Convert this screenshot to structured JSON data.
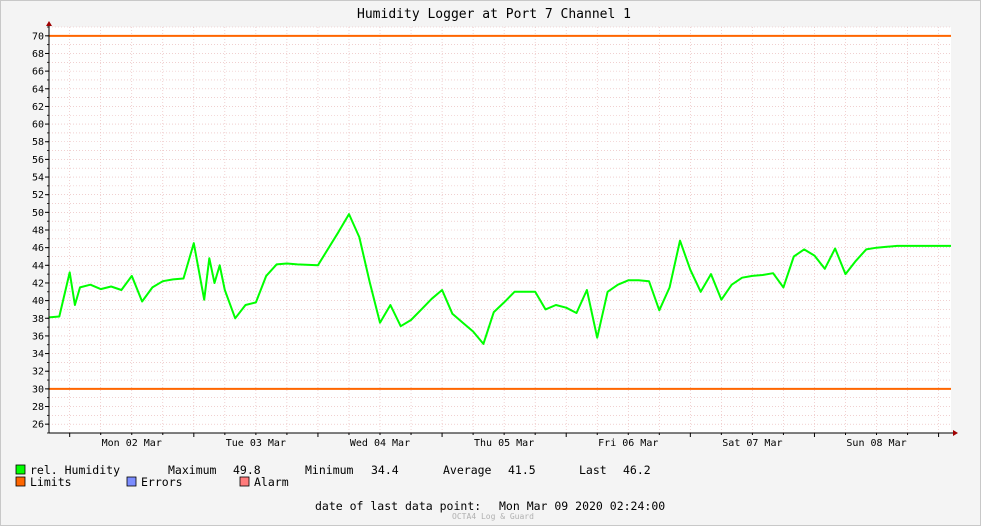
{
  "chart_data": {
    "type": "line",
    "title": "Humidity Logger at Port 7 Channel 1",
    "x_ticks": [
      "Mon 02 Mar",
      "Tue 03 Mar",
      "Wed 04 Mar",
      "Thu 05 Mar",
      "Fri 06 Mar",
      "Sat 07 Mar",
      "Sun 08 Mar"
    ],
    "x_range": [
      "Sun 01 Mar 2020 20:00",
      "Mon 09 Mar 2020 02:24"
    ],
    "ylim": [
      25,
      71
    ],
    "y_ticks": [
      26,
      28,
      30,
      32,
      34,
      36,
      38,
      40,
      42,
      44,
      46,
      48,
      50,
      52,
      54,
      56,
      58,
      60,
      62,
      64,
      66,
      68,
      70
    ],
    "grid": true,
    "limits": {
      "upper": 70,
      "lower": 30,
      "color": "#ff6600"
    },
    "series": [
      {
        "name": "rel. Humidity",
        "color": "#00ff00",
        "x": [
          "Sun 01 Mar 2020 20:00",
          "Sun 01 Mar 2020 22:00",
          "Mon 02 Mar 2020 00:00",
          "Mon 02 Mar 2020 01:00",
          "Mon 02 Mar 2020 02:00",
          "Mon 02 Mar 2020 04:00",
          "Mon 02 Mar 2020 06:00",
          "Mon 02 Mar 2020 08:00",
          "Mon 02 Mar 2020 10:00",
          "Mon 02 Mar 2020 12:00",
          "Mon 02 Mar 2020 14:00",
          "Mon 02 Mar 2020 16:00",
          "Mon 02 Mar 2020 18:00",
          "Mon 02 Mar 2020 20:00",
          "Mon 02 Mar 2020 22:00",
          "Tue 03 Mar 2020 00:00",
          "Tue 03 Mar 2020 02:00",
          "Tue 03 Mar 2020 03:00",
          "Tue 03 Mar 2020 04:00",
          "Tue 03 Mar 2020 05:00",
          "Tue 03 Mar 2020 06:00",
          "Tue 03 Mar 2020 08:00",
          "Tue 03 Mar 2020 10:00",
          "Tue 03 Mar 2020 12:00",
          "Tue 03 Mar 2020 14:00",
          "Tue 03 Mar 2020 16:00",
          "Tue 03 Mar 2020 18:00",
          "Tue 03 Mar 2020 20:00",
          "Wed 04 Mar 2020 00:00",
          "Wed 04 Mar 2020 04:00",
          "Wed 04 Mar 2020 06:00",
          "Wed 04 Mar 2020 08:00",
          "Wed 04 Mar 2020 10:00",
          "Wed 04 Mar 2020 12:00",
          "Wed 04 Mar 2020 14:00",
          "Wed 04 Mar 2020 16:00",
          "Wed 04 Mar 2020 18:00",
          "Wed 04 Mar 2020 20:00",
          "Wed 04 Mar 2020 22:00",
          "Thu 05 Mar 2020 00:00",
          "Thu 05 Mar 2020 02:00",
          "Thu 05 Mar 2020 04:00",
          "Thu 05 Mar 2020 06:00",
          "Thu 05 Mar 2020 08:00",
          "Thu 05 Mar 2020 10:00",
          "Thu 05 Mar 2020 12:00",
          "Thu 05 Mar 2020 14:00",
          "Thu 05 Mar 2020 16:00",
          "Thu 05 Mar 2020 18:00",
          "Thu 05 Mar 2020 20:00",
          "Thu 05 Mar 2020 22:00",
          "Fri 06 Mar 2020 00:00",
          "Fri 06 Mar 2020 02:00",
          "Fri 06 Mar 2020 04:00",
          "Fri 06 Mar 2020 06:00",
          "Fri 06 Mar 2020 08:00",
          "Fri 06 Mar 2020 10:00",
          "Fri 06 Mar 2020 12:00",
          "Fri 06 Mar 2020 14:00",
          "Fri 06 Mar 2020 16:00",
          "Fri 06 Mar 2020 18:00",
          "Fri 06 Mar 2020 20:00",
          "Fri 06 Mar 2020 22:00",
          "Sat 07 Mar 2020 00:00",
          "Sat 07 Mar 2020 02:00",
          "Sat 07 Mar 2020 04:00",
          "Sat 07 Mar 2020 06:00",
          "Sat 07 Mar 2020 08:00",
          "Sat 07 Mar 2020 10:00",
          "Sat 07 Mar 2020 12:00",
          "Sat 07 Mar 2020 14:00",
          "Sat 07 Mar 2020 16:00",
          "Sat 07 Mar 2020 18:00",
          "Sat 07 Mar 2020 20:00",
          "Sat 07 Mar 2020 22:00",
          "Sun 08 Mar 2020 00:00",
          "Sun 08 Mar 2020 02:00",
          "Sun 08 Mar 2020 04:00",
          "Sun 08 Mar 2020 06:00",
          "Sun 08 Mar 2020 08:00",
          "Sun 08 Mar 2020 10:00",
          "Sun 08 Mar 2020 12:00",
          "Sun 08 Mar 2020 14:00",
          "Sun 08 Mar 2020 16:00",
          "Sun 08 Mar 2020 18:00",
          "Sun 08 Mar 2020 20:00",
          "Sun 08 Mar 2020 22:00",
          "Mon 09 Mar 2020 00:00",
          "Mon 09 Mar 2020 02:24"
        ],
        "values": [
          38.1,
          38.2,
          43.2,
          39.5,
          41.5,
          41.8,
          41.3,
          41.6,
          41.2,
          42.8,
          39.9,
          41.5,
          42.2,
          42.4,
          42.5,
          46.5,
          40.1,
          44.8,
          42.0,
          44.0,
          41.2,
          38.0,
          39.5,
          39.8,
          42.8,
          44.1,
          44.2,
          44.1,
          44.0,
          47.8,
          49.8,
          47.2,
          42.1,
          37.5,
          39.5,
          37.1,
          37.8,
          39.0,
          40.2,
          41.2,
          38.5,
          37.5,
          36.5,
          35.1,
          38.7,
          39.8,
          41.0,
          41.0,
          41.0,
          39.0,
          39.5,
          39.2,
          38.6,
          41.2,
          35.8,
          41.0,
          41.8,
          42.3,
          42.3,
          42.2,
          38.9,
          41.5,
          46.8,
          43.5,
          41.0,
          43.0,
          40.1,
          41.8,
          42.6,
          42.8,
          42.9,
          43.1,
          41.5,
          45.0,
          45.8,
          45.1,
          43.6,
          45.9,
          43.0,
          44.5,
          45.8,
          46.0,
          46.1,
          46.2,
          46.2,
          46.2,
          46.2,
          46.2,
          46.2
        ]
      }
    ],
    "legend": {
      "series_label": "rel. Humidity",
      "maximum_label": "Maximum",
      "maximum": "49.8",
      "minimum_label": "Minimum",
      "minimum": "34.4",
      "average_label": "Average",
      "average": "41.5",
      "last_label": "Last",
      "last": "46.2",
      "limits_label": "Limits",
      "errors_label": "Errors",
      "alarm_label": "Alarm",
      "colors": {
        "humidity": "#00ff00",
        "limits": "#ff6600",
        "errors": "#7b8cff",
        "alarm": "#ff7b7b"
      }
    },
    "last_point_label": "date of last data point:",
    "last_point_value": "Mon Mar 09 2020 02:24:00",
    "footer": "OCTA4 Log & Guard"
  }
}
